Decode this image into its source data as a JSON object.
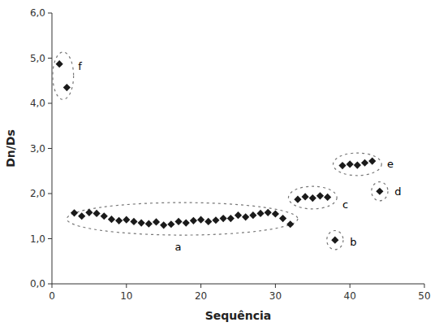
{
  "chart_data": {
    "type": "scatter",
    "xlabel": "Sequência",
    "ylabel": "Dn/Ds",
    "xlim": [
      0,
      50
    ],
    "ylim": [
      0.0,
      6.0
    ],
    "xticks": [
      0,
      10,
      20,
      30,
      40,
      50
    ],
    "yticks": [
      {
        "value": 0.0,
        "label": "0,0"
      },
      {
        "value": 1.0,
        "label": "1,0"
      },
      {
        "value": 2.0,
        "label": "2,0"
      },
      {
        "value": 3.0,
        "label": "3,0"
      },
      {
        "value": 4.0,
        "label": "4,0"
      },
      {
        "value": 5.0,
        "label": "5,0"
      },
      {
        "value": 6.0,
        "label": "6,0"
      }
    ],
    "grid": false,
    "series": [
      {
        "color": "#1a1a1a",
        "marker": "diamond",
        "x": [
          1,
          2,
          3,
          4,
          5,
          6,
          7,
          8,
          9,
          10,
          11,
          12,
          13,
          14,
          15,
          16,
          17,
          18,
          19,
          20,
          21,
          22,
          23,
          24,
          25,
          26,
          27,
          28,
          29,
          30,
          31,
          32,
          33,
          34,
          35,
          36,
          37,
          38,
          39,
          40,
          41,
          42,
          43,
          44
        ],
        "values": [
          4.87,
          4.35,
          1.57,
          1.5,
          1.58,
          1.56,
          1.5,
          1.43,
          1.4,
          1.42,
          1.38,
          1.35,
          1.33,
          1.37,
          1.3,
          1.32,
          1.38,
          1.35,
          1.4,
          1.42,
          1.38,
          1.41,
          1.45,
          1.45,
          1.52,
          1.48,
          1.52,
          1.56,
          1.58,
          1.55,
          1.45,
          1.32,
          1.87,
          1.93,
          1.9,
          1.95,
          1.92,
          0.97,
          2.62,
          2.65,
          2.63,
          2.68,
          2.72,
          2.05
        ]
      }
    ],
    "annotations": [
      {
        "label": "f",
        "cx": 1.5,
        "cy": 4.61,
        "width": 2.8,
        "height": 1.05,
        "angle": 0,
        "label_x": 3.5,
        "label_y": 4.82,
        "color": "#777777",
        "line_style": "dashed"
      },
      {
        "label": "a",
        "cx": 17.5,
        "cy": 1.44,
        "width": 31.0,
        "height": 0.72,
        "angle": 0,
        "label_x": 16.5,
        "label_y": 0.82,
        "color": "#777777",
        "line_style": "dashed"
      },
      {
        "label": "c",
        "cx": 35.0,
        "cy": 1.91,
        "width": 6.5,
        "height": 0.5,
        "angle": 0,
        "label_x": 39.0,
        "label_y": 1.75,
        "color": "#777777",
        "line_style": "dashed"
      },
      {
        "label": "b",
        "cx": 38.0,
        "cy": 0.97,
        "width": 2.2,
        "height": 0.42,
        "angle": 0,
        "label_x": 40.0,
        "label_y": 0.93,
        "color": "#777777",
        "line_style": "dashed"
      },
      {
        "label": "e",
        "cx": 41.0,
        "cy": 2.65,
        "width": 6.5,
        "height": 0.5,
        "angle": 0,
        "label_x": 45.0,
        "label_y": 2.65,
        "color": "#777777",
        "line_style": "dashed"
      },
      {
        "label": "d",
        "cx": 44.0,
        "cy": 2.05,
        "width": 2.2,
        "height": 0.42,
        "angle": 0,
        "label_x": 46.0,
        "label_y": 2.05,
        "color": "#777777",
        "line_style": "dashed"
      }
    ]
  }
}
